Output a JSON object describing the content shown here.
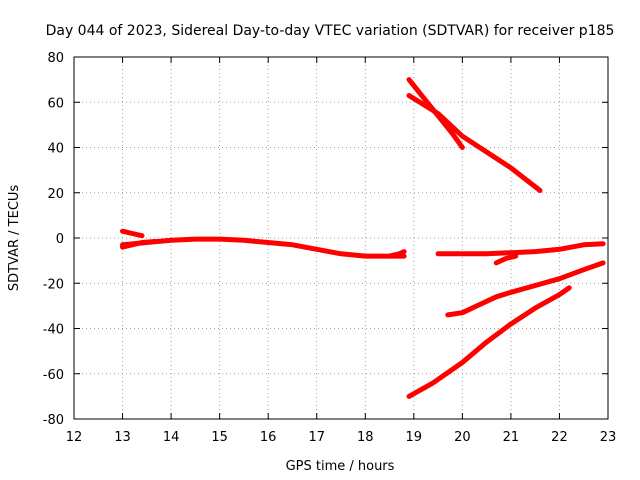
{
  "chart_data": {
    "type": "line",
    "title": "Day 044 of 2023, Sidereal Day-to-day VTEC variation (SDTVAR) for receiver p185",
    "xlabel": "GPS time / hours",
    "ylabel": "SDTVAR / TECUs",
    "xlim": [
      12,
      23
    ],
    "ylim": [
      -80,
      80
    ],
    "xticks": [
      "12",
      "13",
      "14",
      "15",
      "16",
      "17",
      "18",
      "19",
      "20",
      "21",
      "22",
      "23"
    ],
    "yticks": [
      "-80",
      "-60",
      "-40",
      "-20",
      "0",
      "20",
      "40",
      "60",
      "80"
    ],
    "grid": true,
    "color": "#ff0000",
    "series": [
      {
        "x": [
          13.0,
          13.5,
          14.0,
          14.5,
          15.0,
          15.5,
          16.0,
          16.5,
          17.0,
          17.5,
          18.0,
          18.4,
          18.8
        ],
        "y": [
          -3,
          -2,
          -1,
          -0.5,
          -0.5,
          -1,
          -2,
          -3,
          -5,
          -7,
          -8,
          -8,
          -8
        ]
      },
      {
        "x": [
          13.0,
          13.4,
          13.7
        ],
        "y": [
          -4,
          -2,
          -1.5
        ]
      },
      {
        "x": [
          13.0,
          13.2,
          13.4
        ],
        "y": [
          3,
          2,
          1
        ]
      },
      {
        "x": [
          18.5,
          18.7,
          18.8
        ],
        "y": [
          -8,
          -7,
          -6
        ]
      },
      {
        "x": [
          19.5,
          20.0,
          20.5,
          21.0,
          21.5,
          22.0,
          22.5,
          22.9
        ],
        "y": [
          -7,
          -7,
          -7,
          -6.5,
          -6,
          -5,
          -3,
          -2.5
        ]
      },
      {
        "x": [
          20.7,
          20.9,
          21.1
        ],
        "y": [
          -11,
          -9,
          -8
        ]
      },
      {
        "x": [
          18.9,
          19.2,
          19.5,
          19.8,
          20.0
        ],
        "y": [
          70,
          62,
          54,
          46,
          40
        ]
      },
      {
        "x": [
          18.9,
          19.5,
          20.0,
          20.5,
          21.0,
          21.6
        ],
        "y": [
          63,
          55,
          45,
          38,
          31,
          21
        ]
      },
      {
        "x": [
          19.7,
          20.0,
          20.3,
          20.7,
          21.0,
          21.5,
          22.0,
          22.5,
          22.9
        ],
        "y": [
          -34,
          -33,
          -30,
          -26,
          -24,
          -21,
          -18,
          -14,
          -11
        ]
      },
      {
        "x": [
          18.9,
          19.4,
          20.0,
          20.5,
          21.0,
          21.5,
          22.0,
          22.2
        ],
        "y": [
          -70,
          -64,
          -55,
          -46,
          -38,
          -31,
          -25,
          -22
        ]
      }
    ]
  }
}
